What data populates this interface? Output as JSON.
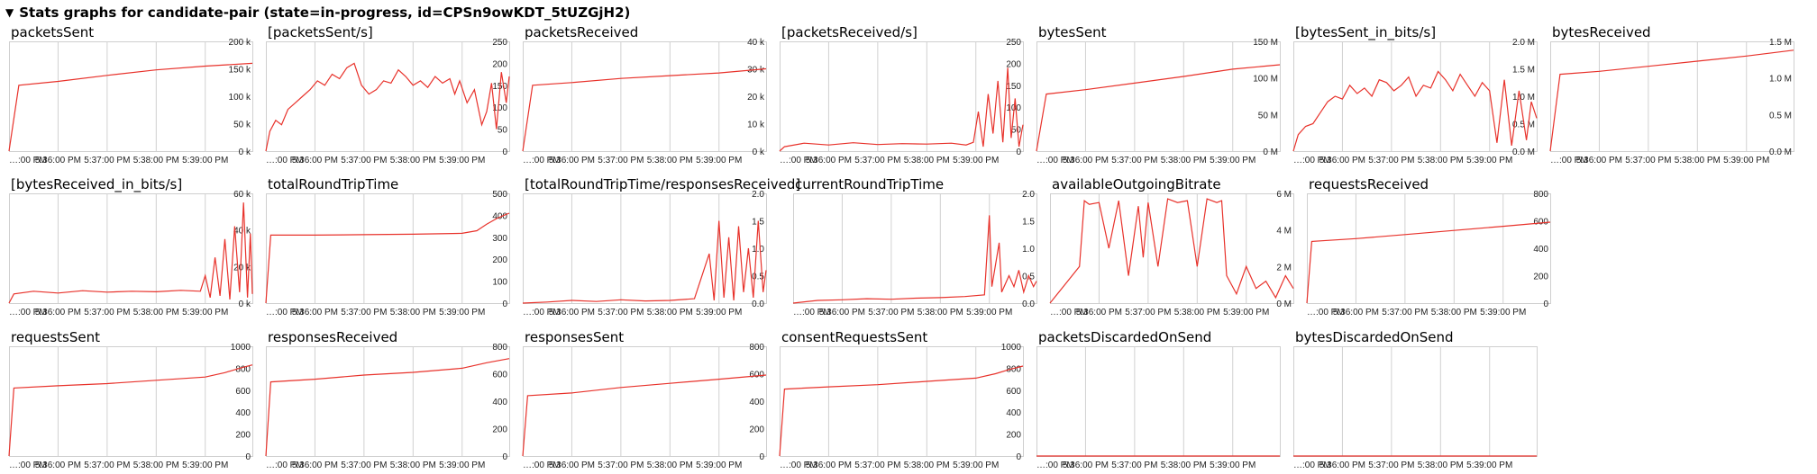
{
  "header": {
    "toggle_glyph": "▼",
    "title": "Stats graphs for candidate-pair (state=in-progress, id=CPSn9owKDT_5tUZGjH2)"
  },
  "colors": {
    "series": "#e8322b",
    "grid": "#d0d0d0"
  },
  "chart_data": [
    {
      "type": "line",
      "title": "packetsSent",
      "x": [
        "…:00 PM",
        "5:36:00 PM",
        "5:37:00 PM",
        "5:38:00 PM",
        "5:39:00 PM"
      ],
      "y_ticks": [
        "200 k",
        "150 k",
        "100 k",
        "50 k",
        "0 k"
      ],
      "ylim": [
        0,
        200000
      ],
      "series": [
        {
          "x": [
            0,
            0.2,
            1.0,
            2.0,
            3.0,
            4.0,
            4.96
          ],
          "y": [
            0,
            120000,
            127000,
            138000,
            148000,
            155000,
            160000
          ]
        }
      ]
    },
    {
      "type": "line",
      "title": "[packetsSent/s]",
      "x": [
        "…:00 PM",
        "5:36:00 PM",
        "5:37:00 PM",
        "5:38:00 PM",
        "5:39:00 PM"
      ],
      "y_ticks": [
        "250",
        "200",
        "150",
        "100",
        "50",
        "0"
      ],
      "ylim": [
        0,
        250
      ],
      "series": [
        {
          "x": [
            0,
            0.08,
            0.2,
            0.32,
            0.45,
            0.6,
            0.75,
            0.9,
            1.05,
            1.2,
            1.35,
            1.5,
            1.65,
            1.8,
            1.95,
            2.1,
            2.25,
            2.4,
            2.55,
            2.7,
            2.85,
            3.0,
            3.15,
            3.3,
            3.45,
            3.6,
            3.75,
            3.85,
            3.95,
            4.1,
            4.25,
            4.4,
            4.5,
            4.6,
            4.7,
            4.8,
            4.9,
            4.96
          ],
          "y": [
            0,
            45,
            70,
            60,
            95,
            110,
            125,
            140,
            160,
            150,
            175,
            165,
            190,
            200,
            150,
            130,
            140,
            160,
            155,
            185,
            170,
            150,
            160,
            145,
            170,
            155,
            165,
            130,
            160,
            110,
            140,
            60,
            90,
            155,
            50,
            180,
            110,
            170
          ]
        }
      ]
    },
    {
      "type": "line",
      "title": "packetsReceived",
      "x": [
        "…:00 PM",
        "5:36:00 PM",
        "5:37:00 PM",
        "5:38:00 PM",
        "5:39:00 PM"
      ],
      "y_ticks": [
        "40 k",
        "30 k",
        "20 k",
        "10 k",
        "0 k"
      ],
      "ylim": [
        0,
        40000
      ],
      "series": [
        {
          "x": [
            0,
            0.2,
            1.0,
            2.0,
            3.0,
            4.0,
            4.96
          ],
          "y": [
            0,
            24000,
            25000,
            26500,
            27500,
            28500,
            30000
          ]
        }
      ]
    },
    {
      "type": "line",
      "title": "[packetsReceived/s]",
      "x": [
        "…:00 PM",
        "5:36:00 PM",
        "5:37:00 PM",
        "5:38:00 PM",
        "5:39:00 PM"
      ],
      "y_ticks": [
        "250",
        "200",
        "150",
        "100",
        "50",
        "0"
      ],
      "ylim": [
        0,
        250
      ],
      "series": [
        {
          "x": [
            0,
            0.1,
            0.5,
            1.0,
            1.5,
            2.0,
            2.5,
            3.0,
            3.5,
            3.8,
            3.95,
            4.05,
            4.15,
            4.25,
            4.35,
            4.45,
            4.55,
            4.65,
            4.72,
            4.8,
            4.88,
            4.96
          ],
          "y": [
            0,
            10,
            18,
            14,
            19,
            15,
            17,
            16,
            18,
            14,
            20,
            90,
            10,
            130,
            40,
            160,
            20,
            190,
            30,
            120,
            10,
            60
          ]
        }
      ]
    },
    {
      "type": "line",
      "title": "bytesSent",
      "x": [
        "…:00 PM",
        "5:36:00 PM",
        "5:37:00 PM",
        "5:38:00 PM",
        "5:39:00 PM"
      ],
      "y_ticks": [
        "150 M",
        "100 M",
        "50 M",
        "0 M"
      ],
      "ylim": [
        0,
        150000000
      ],
      "series": [
        {
          "x": [
            0,
            0.2,
            1.0,
            2.0,
            3.0,
            4.0,
            4.96
          ],
          "y": [
            0,
            78000000,
            84000000,
            93000000,
            102000000,
            112000000,
            118000000
          ]
        }
      ]
    },
    {
      "type": "line",
      "title": "[bytesSent_in_bits/s]",
      "x": [
        "…:00 PM",
        "5:36:00 PM",
        "5:37:00 PM",
        "5:38:00 PM",
        "5:39:00 PM"
      ],
      "y_ticks": [
        "2.0 M",
        "1.5 M",
        "1.0 M",
        "0.5 M",
        "0.0 M"
      ],
      "ylim": [
        0,
        2000000
      ],
      "series": [
        {
          "x": [
            0,
            0.1,
            0.25,
            0.4,
            0.55,
            0.7,
            0.85,
            1.0,
            1.15,
            1.3,
            1.45,
            1.6,
            1.75,
            1.9,
            2.05,
            2.2,
            2.35,
            2.5,
            2.65,
            2.8,
            2.95,
            3.1,
            3.25,
            3.4,
            3.55,
            3.7,
            3.85,
            4.0,
            4.15,
            4.3,
            4.45,
            4.6,
            4.75,
            4.85,
            4.96
          ],
          "y": [
            0,
            300000,
            450000,
            500000,
            700000,
            900000,
            1000000,
            950000,
            1200000,
            1050000,
            1150000,
            1000000,
            1300000,
            1250000,
            1100000,
            1200000,
            1350000,
            1000000,
            1200000,
            1150000,
            1450000,
            1300000,
            1100000,
            1400000,
            1200000,
            1000000,
            1250000,
            1100000,
            150000,
            1300000,
            100000,
            1100000,
            200000,
            900000,
            600000
          ]
        }
      ]
    },
    {
      "type": "line",
      "title": "bytesReceived",
      "x": [
        "…:00 PM",
        "5:36:00 PM",
        "5:37:00 PM",
        "5:38:00 PM",
        "5:39:00 PM"
      ],
      "y_ticks": [
        "1.5 M",
        "1.0 M",
        "0.5 M",
        "0.0 M"
      ],
      "ylim": [
        0,
        1500000
      ],
      "series": [
        {
          "x": [
            0,
            0.2,
            1.0,
            2.0,
            3.0,
            4.0,
            4.96
          ],
          "y": [
            0,
            1050000,
            1090000,
            1160000,
            1230000,
            1300000,
            1380000
          ]
        }
      ]
    },
    {
      "type": "line",
      "title": "[bytesReceived_in_bits/s]",
      "x": [
        "…:00 PM",
        "5:36:00 PM",
        "5:37:00 PM",
        "5:38:00 PM",
        "5:39:00 PM"
      ],
      "y_ticks": [
        "60 k",
        "40 k",
        "20 k",
        "0 k"
      ],
      "ylim": [
        0,
        60000
      ],
      "series": [
        {
          "x": [
            0,
            0.1,
            0.5,
            1.0,
            1.5,
            2.0,
            2.5,
            3.0,
            3.5,
            3.9,
            4.0,
            4.1,
            4.2,
            4.3,
            4.4,
            4.5,
            4.6,
            4.7,
            4.78,
            4.86,
            4.92,
            4.96
          ],
          "y": [
            0,
            5000,
            6500,
            5500,
            6800,
            6000,
            6500,
            6200,
            7000,
            6500,
            15000,
            3000,
            25000,
            4000,
            35000,
            2000,
            42000,
            6000,
            55000,
            3000,
            38000,
            5000
          ]
        }
      ]
    },
    {
      "type": "line",
      "title": "totalRoundTripTime",
      "x": [
        "…:00 PM",
        "5:36:00 PM",
        "5:37:00 PM",
        "5:38:00 PM",
        "5:39:00 PM"
      ],
      "y_ticks": [
        "500",
        "400",
        "300",
        "200",
        "100",
        "0"
      ],
      "ylim": [
        0,
        500
      ],
      "series": [
        {
          "x": [
            0,
            0.1,
            1.0,
            2.0,
            3.0,
            4.0,
            4.3,
            4.5,
            4.7,
            4.85,
            4.96
          ],
          "y": [
            0,
            310,
            310,
            312,
            314,
            318,
            330,
            360,
            385,
            400,
            410
          ]
        }
      ]
    },
    {
      "type": "line",
      "title": "[totalRoundTripTime/responsesReceived]",
      "x": [
        "…:00 PM",
        "5:36:00 PM",
        "5:37:00 PM",
        "5:38:00 PM",
        "5:39:00 PM"
      ],
      "y_ticks": [
        "2.0",
        "1.5",
        "1.0",
        "0.5",
        "0.0"
      ],
      "ylim": [
        0,
        2.0
      ],
      "series": [
        {
          "x": [
            0,
            0.5,
            1.0,
            1.5,
            2.0,
            2.5,
            3.0,
            3.5,
            3.8,
            3.9,
            4.0,
            4.1,
            4.2,
            4.3,
            4.4,
            4.5,
            4.6,
            4.7,
            4.8,
            4.9,
            4.96
          ],
          "y": [
            0,
            0.02,
            0.05,
            0.03,
            0.06,
            0.04,
            0.05,
            0.08,
            0.9,
            0.05,
            1.5,
            0.1,
            1.2,
            0.05,
            1.4,
            0.2,
            1.0,
            0.1,
            1.5,
            0.2,
            0.6
          ]
        }
      ]
    },
    {
      "type": "line",
      "title": "currentRoundTripTime",
      "x": [
        "…:00 PM",
        "5:36:00 PM",
        "5:37:00 PM",
        "5:38:00 PM",
        "5:39:00 PM"
      ],
      "y_ticks": [
        "2.0",
        "1.5",
        "1.0",
        "0.5",
        "0.0"
      ],
      "ylim": [
        0,
        2.0
      ],
      "series": [
        {
          "x": [
            0,
            0.5,
            1.0,
            1.5,
            2.0,
            2.5,
            3.0,
            3.5,
            3.9,
            4.0,
            4.05,
            4.2,
            4.25,
            4.4,
            4.5,
            4.6,
            4.7,
            4.8,
            4.9,
            4.96
          ],
          "y": [
            0,
            0.05,
            0.06,
            0.08,
            0.07,
            0.09,
            0.1,
            0.12,
            0.15,
            1.6,
            0.3,
            1.1,
            0.2,
            0.5,
            0.3,
            0.6,
            0.2,
            0.5,
            0.3,
            0.4
          ]
        }
      ]
    },
    {
      "type": "line",
      "title": "availableOutgoingBitrate",
      "x": [
        "…:00 PM",
        "5:36:00 PM",
        "5:37:00 PM",
        "5:38:00 PM",
        "5:39:00 PM"
      ],
      "y_ticks": [
        "6 M",
        "4 M",
        "2 M",
        "0 M"
      ],
      "ylim": [
        0,
        6000000
      ],
      "series": [
        {
          "x": [
            0,
            0.3,
            0.6,
            0.7,
            0.8,
            1.0,
            1.2,
            1.4,
            1.6,
            1.8,
            1.9,
            2.0,
            2.2,
            2.4,
            2.6,
            2.8,
            3.0,
            3.2,
            3.4,
            3.5,
            3.6,
            3.8,
            4.0,
            4.2,
            4.4,
            4.6,
            4.8,
            4.96
          ],
          "y": [
            0,
            1000000,
            2000000,
            5600000,
            5400000,
            5500000,
            3000000,
            5600000,
            1500000,
            5300000,
            2500000,
            5500000,
            2000000,
            5700000,
            5500000,
            5600000,
            2000000,
            5700000,
            5500000,
            5600000,
            1500000,
            500000,
            2000000,
            800000,
            1200000,
            300000,
            1500000,
            800000
          ]
        }
      ]
    },
    {
      "type": "line",
      "title": "requestsReceived",
      "x": [
        "…:00 PM",
        "5:36:00 PM",
        "5:37:00 PM",
        "5:38:00 PM",
        "5:39:00 PM"
      ],
      "y_ticks": [
        "800",
        "600",
        "400",
        "200",
        "0"
      ],
      "ylim": [
        0,
        800
      ],
      "series": [
        {
          "x": [
            0,
            0.1,
            1.0,
            2.0,
            3.0,
            4.0,
            4.96
          ],
          "y": [
            0,
            450,
            470,
            500,
            530,
            560,
            590
          ]
        }
      ]
    },
    {
      "type": "line",
      "title": "requestsSent",
      "x": [
        "…:00 PM",
        "5:36:00 PM",
        "5:37:00 PM",
        "5:38:00 PM",
        "5:39:00 PM"
      ],
      "y_ticks": [
        "1000",
        "800",
        "600",
        "400",
        "200",
        "0"
      ],
      "ylim": [
        0,
        1000
      ],
      "series": [
        {
          "x": [
            0,
            0.1,
            1.0,
            2.0,
            3.0,
            4.0,
            4.4,
            4.7,
            4.96
          ],
          "y": [
            0,
            620,
            640,
            660,
            690,
            720,
            760,
            800,
            830
          ]
        }
      ]
    },
    {
      "type": "line",
      "title": "responsesReceived",
      "x": [
        "…:00 PM",
        "5:36:00 PM",
        "5:37:00 PM",
        "5:38:00 PM",
        "5:39:00 PM"
      ],
      "y_ticks": [
        "800",
        "600",
        "400",
        "200",
        "0"
      ],
      "ylim": [
        0,
        800
      ],
      "series": [
        {
          "x": [
            0,
            0.1,
            1.0,
            2.0,
            3.0,
            4.0,
            4.5,
            4.96
          ],
          "y": [
            0,
            540,
            560,
            590,
            610,
            640,
            680,
            710
          ]
        }
      ]
    },
    {
      "type": "line",
      "title": "responsesSent",
      "x": [
        "…:00 PM",
        "5:36:00 PM",
        "5:37:00 PM",
        "5:38:00 PM",
        "5:39:00 PM"
      ],
      "y_ticks": [
        "800",
        "600",
        "400",
        "200",
        "0"
      ],
      "ylim": [
        0,
        800
      ],
      "series": [
        {
          "x": [
            0,
            0.1,
            1.0,
            2.0,
            3.0,
            4.0,
            4.96
          ],
          "y": [
            0,
            440,
            460,
            500,
            530,
            560,
            590
          ]
        }
      ]
    },
    {
      "type": "line",
      "title": "consentRequestsSent",
      "x": [
        "…:00 PM",
        "5:36:00 PM",
        "5:37:00 PM",
        "5:38:00 PM",
        "5:39:00 PM"
      ],
      "y_ticks": [
        "1000",
        "800",
        "600",
        "400",
        "200",
        "0"
      ],
      "ylim": [
        0,
        1000
      ],
      "series": [
        {
          "x": [
            0,
            0.1,
            1.0,
            2.0,
            3.0,
            4.0,
            4.4,
            4.7,
            4.96
          ],
          "y": [
            0,
            610,
            630,
            650,
            680,
            710,
            750,
            790,
            820
          ]
        }
      ]
    },
    {
      "type": "line",
      "title": "packetsDiscardedOnSend",
      "x": [
        "…:00 PM",
        "5:36:00 PM",
        "5:37:00 PM",
        "5:38:00 PM",
        "5:39:00 PM"
      ],
      "y_ticks": [],
      "ylim": [
        0,
        1
      ],
      "series": [
        {
          "x": [
            0,
            4.96
          ],
          "y": [
            0,
            0
          ]
        }
      ]
    },
    {
      "type": "line",
      "title": "bytesDiscardedOnSend",
      "x": [
        "…:00 PM",
        "5:36:00 PM",
        "5:37:00 PM",
        "5:38:00 PM",
        "5:39:00 PM"
      ],
      "y_ticks": [],
      "ylim": [
        0,
        1
      ],
      "series": [
        {
          "x": [
            0,
            4.96
          ],
          "y": [
            0,
            0
          ]
        }
      ]
    }
  ]
}
